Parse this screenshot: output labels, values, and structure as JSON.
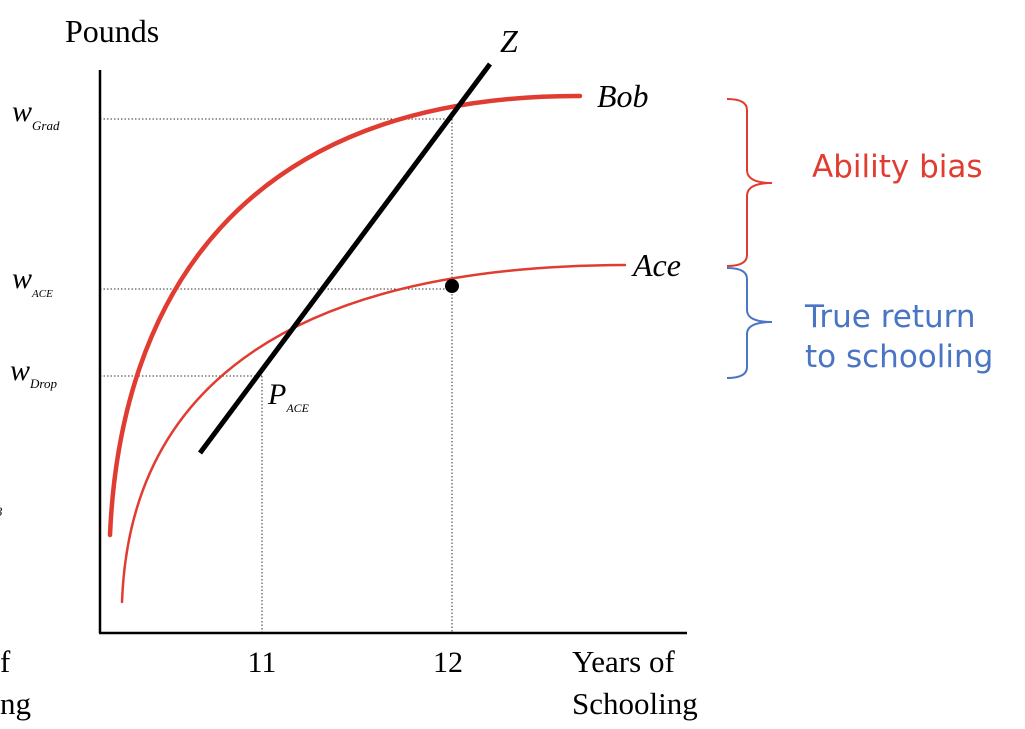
{
  "y_axis_title": "Pounds",
  "x_axis_title_line1": "Years of",
  "x_axis_title_line2": "Schooling",
  "wage_labels": {
    "grad": {
      "base": "w",
      "sub": "Grad"
    },
    "ace": {
      "base": "w",
      "sub": "ACE"
    },
    "drop": {
      "base": "w",
      "sub": "Drop"
    }
  },
  "x_ticks": [
    "11",
    "12"
  ],
  "curves": {
    "bob": {
      "label": "Bob",
      "color": "#e03c31"
    },
    "ace": {
      "label": "Ace",
      "color": "#e03c31"
    },
    "z": {
      "label": "Z",
      "color": "#000000"
    }
  },
  "point_label": {
    "base": "P",
    "sub": "ACE"
  },
  "annotations": {
    "ability_bias": {
      "text": "Ability bias",
      "color": "#e03c31"
    },
    "true_return": {
      "line1": "True return",
      "line2": "to schooling",
      "color": "#4a74c4"
    }
  },
  "left_cropped_text": {
    "line1": "f",
    "line2": "ng",
    "fragment": "3"
  }
}
